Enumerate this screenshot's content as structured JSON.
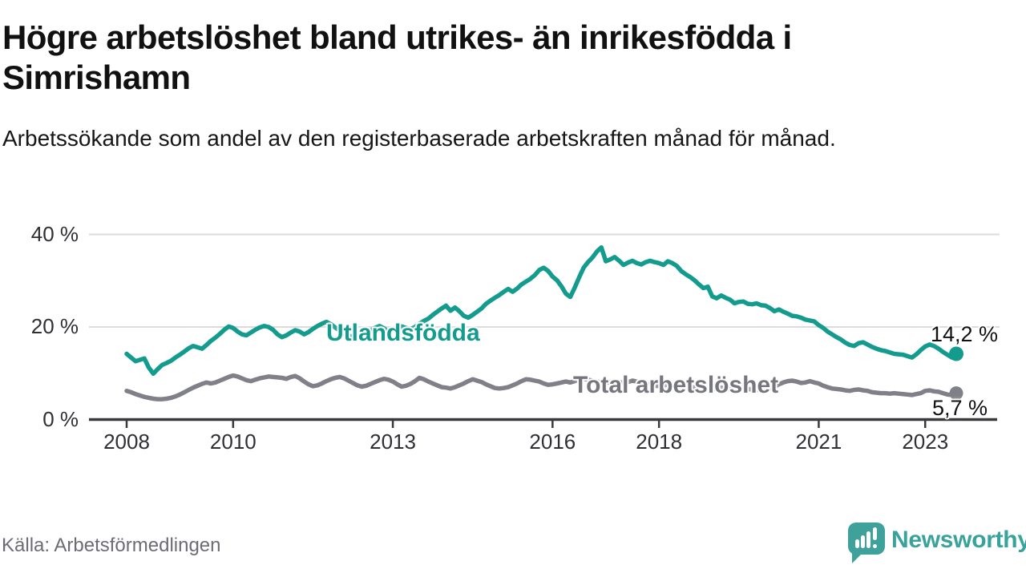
{
  "header": {
    "title": "Högre arbetslöshet bland utrikes- än inrikesfödda i Simrishamn",
    "subtitle": "Arbetssökande som andel av den registerbaserade arbetskraften månad för månad."
  },
  "chart_data": {
    "type": "line",
    "title": "Högre arbetslöshet bland utrikes- än inrikesfödda i Simrishamn",
    "subtitle": "Arbetssökande som andel av den registerbaserade arbetskraften månad för månad.",
    "frequency": "monthly",
    "x_start": "2008-01",
    "x_end": "2023-08",
    "ylim": [
      0,
      42
    ],
    "grid": "horizontal",
    "legend_position": "inline-labels",
    "y_ticks": [
      {
        "label": "0 %",
        "value": 0
      },
      {
        "label": "20 %",
        "value": 20
      },
      {
        "label": "40 %",
        "value": 40
      }
    ],
    "x_ticks": [
      {
        "label": "2008",
        "year": 2008
      },
      {
        "label": "2010",
        "year": 2010
      },
      {
        "label": "2013",
        "year": 2013
      },
      {
        "label": "2016",
        "year": 2016
      },
      {
        "label": "2018",
        "year": 2018
      },
      {
        "label": "2021",
        "year": 2021
      },
      {
        "label": "2023",
        "year": 2023
      }
    ],
    "series": [
      {
        "id": "utlandsfodda",
        "name": "Utlandsfödda",
        "color": "#139c8e",
        "end_label": "14,2 %",
        "end_value": 14.2,
        "values": [
          14.2,
          13.4,
          12.6,
          12.9,
          13.2,
          11.2,
          9.9,
          10.9,
          11.8,
          12.2,
          12.7,
          13.4,
          14.0,
          14.7,
          15.4,
          15.9,
          15.6,
          15.3,
          16.1,
          17.0,
          17.7,
          18.5,
          19.4,
          20.1,
          19.8,
          19.0,
          18.4,
          18.2,
          18.8,
          19.4,
          19.9,
          20.2,
          20.0,
          19.4,
          18.4,
          17.8,
          18.2,
          18.8,
          19.3,
          19.0,
          18.4,
          18.9,
          19.6,
          20.2,
          20.7,
          21.1,
          20.6,
          19.9,
          19.2,
          18.6,
          18.1,
          17.9,
          17.5,
          17.9,
          18.5,
          19.2,
          19.8,
          20.2,
          19.7,
          19.0,
          19.4,
          19.8,
          20.1,
          19.8,
          19.5,
          20.0,
          20.7,
          21.3,
          21.8,
          22.6,
          23.3,
          24.0,
          24.6,
          23.5,
          24.2,
          23.4,
          22.4,
          22.0,
          22.6,
          23.3,
          24.0,
          25.0,
          25.7,
          26.3,
          26.9,
          27.6,
          28.2,
          27.6,
          28.3,
          29.2,
          29.8,
          30.4,
          31.2,
          32.3,
          32.8,
          32.1,
          30.9,
          30.1,
          28.8,
          27.2,
          26.5,
          28.5,
          30.7,
          32.8,
          34.0,
          35.0,
          36.3,
          37.2,
          34.2,
          34.6,
          35.1,
          34.3,
          33.4,
          33.9,
          34.3,
          33.8,
          33.5,
          34.0,
          34.3,
          34.0,
          33.8,
          33.4,
          34.2,
          33.8,
          33.2,
          32.1,
          31.4,
          30.8,
          30.1,
          29.2,
          28.4,
          28.7,
          26.6,
          26.2,
          26.8,
          26.3,
          25.9,
          25.1,
          25.4,
          25.5,
          25.0,
          24.9,
          25.1,
          24.7,
          24.6,
          24.1,
          23.4,
          23.8,
          23.3,
          22.9,
          22.4,
          22.3,
          22.0,
          21.6,
          21.4,
          21.2,
          20.4,
          19.8,
          19.0,
          18.4,
          17.8,
          17.3,
          16.6,
          16.1,
          15.9,
          16.5,
          16.7,
          16.2,
          15.7,
          15.3,
          15.0,
          14.8,
          14.5,
          14.2,
          14.1,
          14.0,
          13.7,
          13.4,
          14.1,
          15.0,
          15.8,
          16.2,
          15.9,
          15.3,
          14.6,
          14.0,
          13.4,
          14.2
        ]
      },
      {
        "id": "total-arbetsloshet",
        "name": "Total arbetslöshet",
        "color": "#808089",
        "end_label": "5,7 %",
        "end_value": 5.7,
        "values": [
          6.2,
          5.9,
          5.5,
          5.2,
          4.9,
          4.7,
          4.5,
          4.4,
          4.4,
          4.5,
          4.7,
          5.0,
          5.4,
          5.9,
          6.4,
          6.9,
          7.3,
          7.7,
          8.0,
          7.8,
          8.0,
          8.4,
          8.8,
          9.2,
          9.5,
          9.3,
          8.9,
          8.5,
          8.3,
          8.6,
          8.9,
          9.1,
          9.3,
          9.2,
          9.1,
          9.0,
          8.8,
          9.2,
          9.4,
          8.9,
          8.2,
          7.6,
          7.2,
          7.4,
          7.8,
          8.3,
          8.7,
          9.0,
          9.2,
          8.9,
          8.4,
          7.9,
          7.4,
          7.1,
          7.3,
          7.7,
          8.1,
          8.5,
          8.8,
          8.6,
          8.2,
          7.6,
          7.1,
          7.3,
          7.7,
          8.3,
          9.0,
          8.7,
          8.2,
          7.8,
          7.4,
          7.0,
          6.9,
          6.7,
          7.0,
          7.4,
          7.8,
          8.3,
          8.7,
          8.4,
          8.1,
          7.6,
          7.2,
          6.8,
          6.7,
          6.8,
          7.0,
          7.4,
          7.8,
          8.3,
          8.7,
          8.6,
          8.4,
          8.2,
          7.8,
          7.5,
          7.6,
          7.8,
          8.0,
          8.2,
          8.0,
          8.3,
          8.6,
          8.8,
          8.6,
          8.4,
          8.2,
          8.0,
          7.9,
          8.1,
          8.3,
          8.1,
          7.9,
          8.1,
          8.4,
          8.2,
          7.9,
          7.7,
          7.5,
          7.3,
          7.2,
          7.4,
          7.5,
          7.3,
          7.1,
          7.0,
          7.2,
          7.1,
          6.9,
          6.7,
          6.6,
          6.7,
          6.6,
          6.8,
          6.9,
          6.7,
          6.5,
          6.6,
          6.9,
          6.8,
          6.6,
          6.5,
          6.4,
          6.5,
          6.6,
          6.7,
          7.0,
          7.6,
          8.0,
          8.3,
          8.4,
          8.2,
          7.9,
          8.0,
          8.3,
          8.0,
          7.8,
          7.3,
          7.0,
          6.7,
          6.6,
          6.5,
          6.3,
          6.2,
          6.4,
          6.5,
          6.3,
          6.2,
          5.9,
          5.8,
          5.7,
          5.7,
          5.6,
          5.7,
          5.6,
          5.5,
          5.4,
          5.3,
          5.5,
          5.7,
          6.2,
          6.3,
          6.1,
          6.0,
          5.7,
          5.4,
          5.3,
          5.7
        ]
      }
    ]
  },
  "footer": {
    "source": "Källa: Arbetsförmedlingen",
    "brand": "Newsworthy"
  },
  "colors": {
    "teal": "#139c8e",
    "gray_line": "#808089",
    "gray_label": "#76767f",
    "axis": "#3a3a3e",
    "gridline": "#dbdbdb",
    "tick_label": "#2f2f34",
    "logo_teal": "#3ea29b",
    "brand_text": "#38a39b",
    "source_text": "#6c6c75",
    "background": "#ffffff"
  }
}
